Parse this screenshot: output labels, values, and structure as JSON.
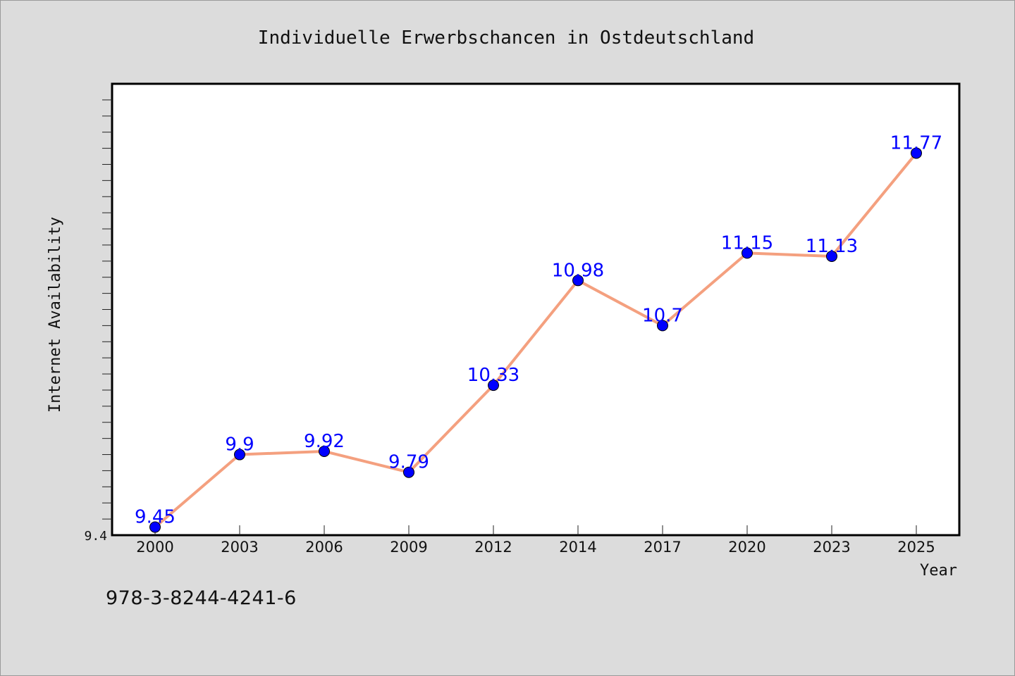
{
  "chart_data": {
    "type": "line",
    "title": "Individuelle Erwerbschancen in Ostdeutschland",
    "xlabel": "Year",
    "ylabel": "Internet Availability",
    "categories": [
      "2000",
      "2003",
      "2006",
      "2009",
      "2012",
      "2014",
      "2017",
      "2020",
      "2023",
      "2025"
    ],
    "series": [
      {
        "values": [
          9.45,
          9.9,
          9.92,
          9.79,
          10.33,
          10.98,
          10.7,
          11.15,
          11.13,
          11.77
        ],
        "labels": [
          "9.45",
          "9.9",
          "9.92",
          "9.79",
          "10.33",
          "10.98",
          "10.7",
          "11.15",
          "11.13",
          "11.77"
        ]
      }
    ],
    "ylim": [
      9.4,
      12.2
    ],
    "ytick_labels": [
      "9.4"
    ],
    "grid": false,
    "colors": {
      "line": "#f4a07f",
      "marker": "#0000ff",
      "data_label": "#0000ff",
      "background": "#dcdcdc",
      "plot_background": "#ffffff"
    }
  },
  "caption": "978-3-8244-4241-6"
}
